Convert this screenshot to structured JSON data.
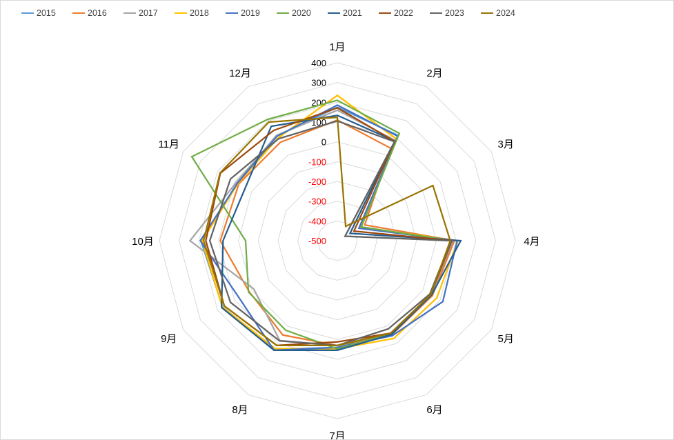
{
  "chart_data": {
    "type": "radar",
    "title": "",
    "categories": [
      "1月",
      "2月",
      "3月",
      "4月",
      "5月",
      "6月",
      "7月",
      "8月",
      "9月",
      "10月",
      "11月",
      "12月"
    ],
    "rlim": [
      -500,
      400
    ],
    "ticks": [
      400,
      300,
      200,
      100,
      0,
      -100,
      -200,
      -300,
      -400,
      -500
    ],
    "tick_labels": [
      "400",
      "300",
      "200",
      "100",
      "0",
      "-100",
      "-200",
      "-300",
      "-400",
      "-500"
    ],
    "negative_tick_color": "#FF0000",
    "positive_tick_color": "#000000",
    "grid": true,
    "legend_position": "top",
    "series": [
      {
        "name": "2015",
        "color": "#5B9BD5",
        "values": [
          175,
          115,
          -370,
          85,
          50,
          45,
          40,
          135,
          170,
          190,
          83,
          112
        ]
      },
      {
        "name": "2016",
        "color": "#ED7D31",
        "values": [
          110,
          40,
          -340,
          92,
          55,
          50,
          30,
          51,
          15,
          92,
          75,
          75
        ]
      },
      {
        "name": "2017",
        "color": "#A5A5A5",
        "values": [
          160,
          85,
          -455,
          80,
          50,
          45,
          30,
          83,
          -12,
          245,
          90,
          115
        ]
      },
      {
        "name": "2018",
        "color": "#FFC000",
        "values": [
          235,
          95,
          -365,
          110,
          80,
          71,
          47,
          130,
          172,
          183,
          80,
          100
        ]
      },
      {
        "name": "2019",
        "color": "#4472C4",
        "values": [
          186,
          110,
          -374,
          106,
          116,
          55,
          40,
          140,
          75,
          193,
          83,
          110
        ]
      },
      {
        "name": "2020",
        "color": "#70AD47",
        "values": [
          210,
          127,
          -360,
          78,
          45,
          45,
          47,
          23,
          19,
          -36,
          350,
          208
        ]
      },
      {
        "name": "2021",
        "color": "#255E91",
        "values": [
          134,
          82,
          -426,
          124,
          50,
          48,
          54,
          140,
          176,
          78,
          37,
          168
        ]
      },
      {
        "name": "2022",
        "color": "#9E480E",
        "values": [
          172,
          80,
          -403,
          78,
          45,
          40,
          12,
          112,
          160,
          165,
          183,
          144
        ]
      },
      {
        "name": "2023",
        "color": "#636363",
        "values": [
          106,
          78,
          -455,
          75,
          40,
          15,
          30,
          85,
          124,
          145,
          124,
          95
        ]
      },
      {
        "name": "2024",
        "color": "#997300",
        "values": [
          124,
          -416,
          58,
          71,
          45,
          40,
          30,
          112,
          160,
          176,
          185,
          193
        ]
      }
    ]
  }
}
